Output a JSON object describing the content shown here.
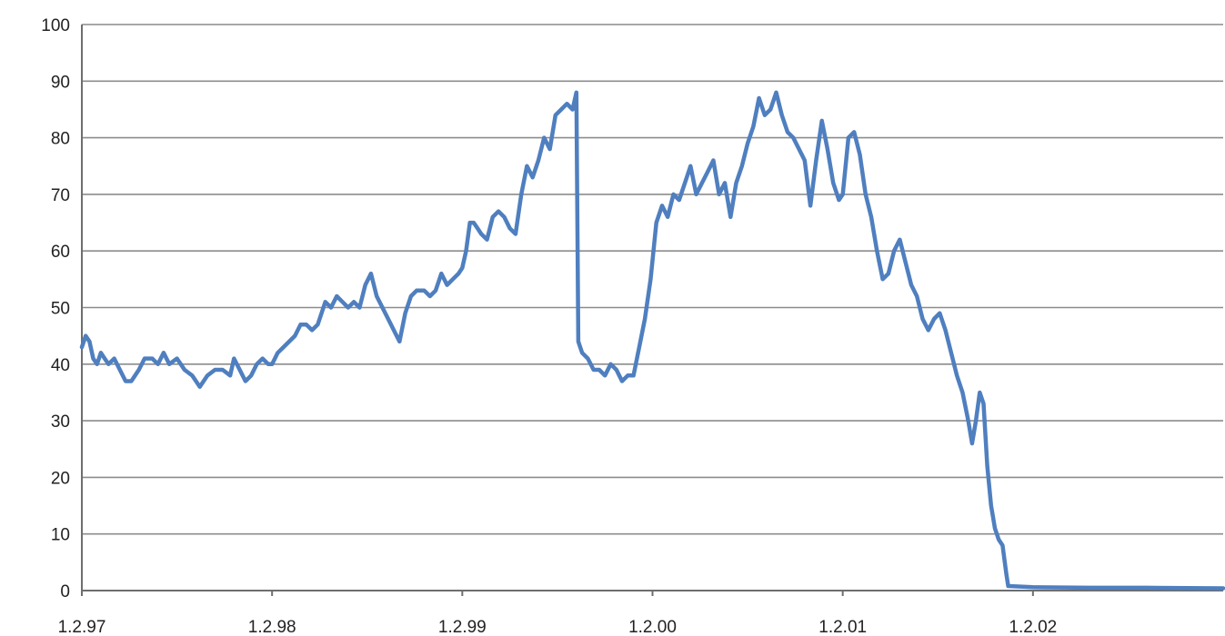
{
  "chart_data": {
    "type": "line",
    "title": "",
    "xlabel": "",
    "ylabel": "",
    "ylim": [
      0,
      100
    ],
    "yticks": [
      "0",
      "10",
      "20",
      "30",
      "40",
      "50",
      "60",
      "70",
      "80",
      "90",
      "100"
    ],
    "xticks": [
      "1.2.97",
      "1.2.98",
      "1.2.99",
      "1.2.00",
      "1.2.01",
      "1.2.02"
    ],
    "xlim": [
      1997.0,
      2003.0
    ],
    "grid": true,
    "legend": "none",
    "colors": {
      "series": "#4f7fbf",
      "grid": "#8c8c8c",
      "axis": "#6e6e6e"
    },
    "series": [
      {
        "points": [
          [
            1997.0,
            43
          ],
          [
            1997.02,
            45
          ],
          [
            1997.04,
            44
          ],
          [
            1997.06,
            41
          ],
          [
            1997.08,
            40
          ],
          [
            1997.1,
            42
          ],
          [
            1997.12,
            41
          ],
          [
            1997.14,
            40
          ],
          [
            1997.17,
            41
          ],
          [
            1997.2,
            39
          ],
          [
            1997.23,
            37
          ],
          [
            1997.26,
            37
          ],
          [
            1997.3,
            39
          ],
          [
            1997.33,
            41
          ],
          [
            1997.37,
            41
          ],
          [
            1997.4,
            40
          ],
          [
            1997.43,
            42
          ],
          [
            1997.46,
            40
          ],
          [
            1997.5,
            41
          ],
          [
            1997.54,
            39
          ],
          [
            1997.58,
            38
          ],
          [
            1997.62,
            36
          ],
          [
            1997.66,
            38
          ],
          [
            1997.7,
            39
          ],
          [
            1997.74,
            39
          ],
          [
            1997.78,
            38
          ],
          [
            1997.8,
            41
          ],
          [
            1997.83,
            39
          ],
          [
            1997.86,
            37
          ],
          [
            1997.89,
            38
          ],
          [
            1997.92,
            40
          ],
          [
            1997.95,
            41
          ],
          [
            1997.98,
            40
          ],
          [
            1998.0,
            40
          ],
          [
            1998.03,
            42
          ],
          [
            1998.06,
            43
          ],
          [
            1998.09,
            44
          ],
          [
            1998.12,
            45
          ],
          [
            1998.15,
            47
          ],
          [
            1998.18,
            47
          ],
          [
            1998.21,
            46
          ],
          [
            1998.24,
            47
          ],
          [
            1998.28,
            51
          ],
          [
            1998.31,
            50
          ],
          [
            1998.34,
            52
          ],
          [
            1998.37,
            51
          ],
          [
            1998.4,
            50
          ],
          [
            1998.43,
            51
          ],
          [
            1998.46,
            50
          ],
          [
            1998.49,
            54
          ],
          [
            1998.52,
            56
          ],
          [
            1998.55,
            52
          ],
          [
            1998.58,
            50
          ],
          [
            1998.61,
            48
          ],
          [
            1998.64,
            46
          ],
          [
            1998.67,
            44
          ],
          [
            1998.7,
            49
          ],
          [
            1998.73,
            52
          ],
          [
            1998.76,
            53
          ],
          [
            1998.8,
            53
          ],
          [
            1998.83,
            52
          ],
          [
            1998.86,
            53
          ],
          [
            1998.89,
            56
          ],
          [
            1998.92,
            54
          ],
          [
            1998.95,
            55
          ],
          [
            1998.98,
            56
          ],
          [
            1999.0,
            57
          ],
          [
            1999.02,
            60
          ],
          [
            1999.04,
            65
          ],
          [
            1999.06,
            65
          ],
          [
            1999.08,
            64
          ],
          [
            1999.1,
            63
          ],
          [
            1999.13,
            62
          ],
          [
            1999.16,
            66
          ],
          [
            1999.19,
            67
          ],
          [
            1999.22,
            66
          ],
          [
            1999.25,
            64
          ],
          [
            1999.28,
            63
          ],
          [
            1999.31,
            70
          ],
          [
            1999.34,
            75
          ],
          [
            1999.37,
            73
          ],
          [
            1999.4,
            76
          ],
          [
            1999.43,
            80
          ],
          [
            1999.46,
            78
          ],
          [
            1999.49,
            84
          ],
          [
            1999.52,
            85
          ],
          [
            1999.55,
            86
          ],
          [
            1999.58,
            85
          ],
          [
            1999.6,
            88
          ],
          [
            1999.61,
            44
          ],
          [
            1999.63,
            42
          ],
          [
            1999.66,
            41
          ],
          [
            1999.69,
            39
          ],
          [
            1999.72,
            39
          ],
          [
            1999.75,
            38
          ],
          [
            1999.78,
            40
          ],
          [
            1999.81,
            39
          ],
          [
            1999.84,
            37
          ],
          [
            1999.87,
            38
          ],
          [
            1999.9,
            38
          ],
          [
            1999.93,
            43
          ],
          [
            1999.96,
            48
          ],
          [
            1999.99,
            55
          ],
          [
            2000.02,
            65
          ],
          [
            2000.05,
            68
          ],
          [
            2000.08,
            66
          ],
          [
            2000.11,
            70
          ],
          [
            2000.14,
            69
          ],
          [
            2000.17,
            72
          ],
          [
            2000.2,
            75
          ],
          [
            2000.23,
            70
          ],
          [
            2000.26,
            72
          ],
          [
            2000.29,
            74
          ],
          [
            2000.32,
            76
          ],
          [
            2000.35,
            70
          ],
          [
            2000.38,
            72
          ],
          [
            2000.41,
            66
          ],
          [
            2000.44,
            72
          ],
          [
            2000.47,
            75
          ],
          [
            2000.5,
            79
          ],
          [
            2000.53,
            82
          ],
          [
            2000.56,
            87
          ],
          [
            2000.59,
            84
          ],
          [
            2000.62,
            85
          ],
          [
            2000.65,
            88
          ],
          [
            2000.68,
            84
          ],
          [
            2000.71,
            81
          ],
          [
            2000.74,
            80
          ],
          [
            2000.77,
            78
          ],
          [
            2000.8,
            76
          ],
          [
            2000.83,
            68
          ],
          [
            2000.86,
            76
          ],
          [
            2000.89,
            83
          ],
          [
            2000.92,
            78
          ],
          [
            2000.95,
            72
          ],
          [
            2000.98,
            69
          ],
          [
            2001.0,
            70
          ],
          [
            2001.03,
            80
          ],
          [
            2001.06,
            81
          ],
          [
            2001.09,
            77
          ],
          [
            2001.12,
            70
          ],
          [
            2001.15,
            66
          ],
          [
            2001.18,
            60
          ],
          [
            2001.21,
            55
          ],
          [
            2001.24,
            56
          ],
          [
            2001.27,
            60
          ],
          [
            2001.3,
            62
          ],
          [
            2001.33,
            58
          ],
          [
            2001.36,
            54
          ],
          [
            2001.39,
            52
          ],
          [
            2001.42,
            48
          ],
          [
            2001.45,
            46
          ],
          [
            2001.48,
            48
          ],
          [
            2001.51,
            49
          ],
          [
            2001.54,
            46
          ],
          [
            2001.57,
            42
          ],
          [
            2001.6,
            38
          ],
          [
            2001.63,
            35
          ],
          [
            2001.66,
            30
          ],
          [
            2001.68,
            26
          ],
          [
            2001.7,
            30
          ],
          [
            2001.72,
            35
          ],
          [
            2001.74,
            33
          ],
          [
            2001.76,
            22
          ],
          [
            2001.78,
            15
          ],
          [
            2001.8,
            11
          ],
          [
            2001.82,
            9
          ],
          [
            2001.84,
            8
          ],
          [
            2001.86,
            3
          ],
          [
            2001.87,
            0.8
          ],
          [
            2002.0,
            0.6
          ],
          [
            2002.3,
            0.5
          ],
          [
            2002.6,
            0.5
          ],
          [
            2003.0,
            0.4
          ]
        ]
      }
    ]
  }
}
